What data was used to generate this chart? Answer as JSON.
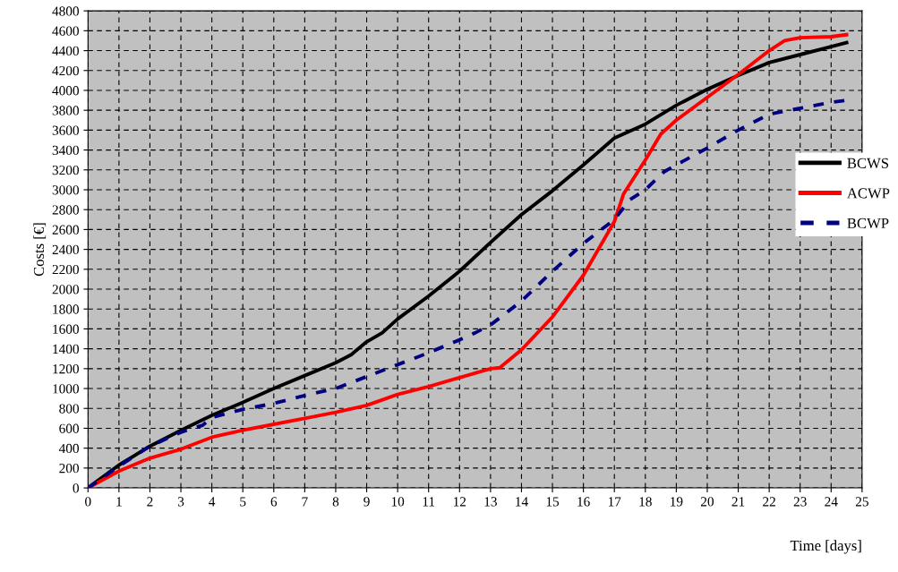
{
  "chart_data": {
    "type": "line",
    "xlabel": "Time [days]",
    "ylabel": "Costs [€]",
    "xlim": [
      0,
      25
    ],
    "xticks": [
      0,
      1,
      2,
      3,
      4,
      5,
      6,
      7,
      8,
      9,
      10,
      11,
      12,
      13,
      14,
      15,
      16,
      17,
      18,
      19,
      20,
      21,
      22,
      23,
      24,
      25
    ],
    "ylim": [
      0,
      4800
    ],
    "yticks": [
      0,
      200,
      400,
      600,
      800,
      1000,
      1200,
      1400,
      1600,
      1800,
      2000,
      2200,
      2400,
      2600,
      2800,
      3000,
      3200,
      3400,
      3600,
      3800,
      4000,
      4200,
      4400,
      4600,
      4800
    ],
    "grid": true,
    "legend": "right",
    "marker": "none",
    "series": [
      {
        "name": "BCWS",
        "color": "#000000",
        "line_style": "solid",
        "x": [
          0,
          1,
          2,
          3,
          4,
          5,
          6,
          7,
          8,
          8.5,
          9,
          9.5,
          10,
          11,
          12,
          13,
          14,
          15,
          16,
          17,
          18,
          19,
          20,
          21,
          22,
          23,
          24,
          24.5
        ],
        "values": [
          0,
          230,
          420,
          580,
          730,
          860,
          1000,
          1130,
          1260,
          1340,
          1470,
          1560,
          1700,
          1930,
          2180,
          2470,
          2750,
          2990,
          3250,
          3520,
          3660,
          3850,
          4010,
          4150,
          4280,
          4360,
          4440,
          4480
        ]
      },
      {
        "name": "ACWP",
        "color": "#ff0000",
        "line_style": "solid",
        "x": [
          0,
          1,
          2,
          3,
          4,
          5,
          6,
          7,
          8,
          9,
          10,
          11,
          12,
          13,
          13.3,
          14,
          15,
          16,
          17,
          17.3,
          18,
          18.5,
          19,
          20,
          21,
          22,
          22.5,
          23,
          24,
          24.5
        ],
        "values": [
          0,
          170,
          300,
          390,
          510,
          580,
          640,
          700,
          760,
          830,
          940,
          1020,
          1110,
          1200,
          1210,
          1390,
          1720,
          2140,
          2680,
          2960,
          3300,
          3560,
          3700,
          3930,
          4160,
          4400,
          4500,
          4530,
          4540,
          4560
        ]
      },
      {
        "name": "BCWP",
        "color": "#000080",
        "line_style": "dashed",
        "x": [
          0,
          1,
          2,
          3,
          3.7,
          4,
          5,
          6,
          7,
          8,
          9,
          10,
          11,
          12,
          12.5,
          13,
          14,
          15,
          16,
          17,
          17.5,
          18,
          18.6,
          19,
          20,
          21,
          22,
          23,
          24,
          24.5
        ],
        "values": [
          0,
          220,
          420,
          560,
          630,
          710,
          790,
          850,
          930,
          1000,
          1120,
          1240,
          1360,
          1490,
          1560,
          1640,
          1880,
          2180,
          2460,
          2700,
          2900,
          3000,
          3180,
          3250,
          3420,
          3600,
          3760,
          3820,
          3880,
          3900
        ]
      }
    ]
  }
}
